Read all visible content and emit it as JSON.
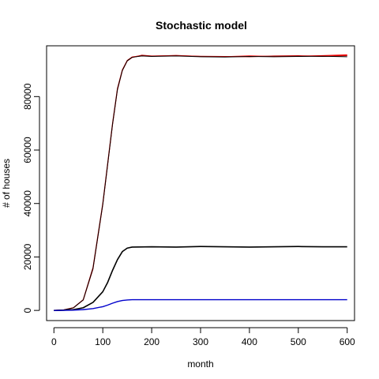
{
  "chart_data": {
    "type": "line",
    "title": "Stochastic model",
    "xlabel": "month",
    "ylabel": "# of houses",
    "xlim": [
      -15,
      615
    ],
    "ylim": [
      -3800,
      99000
    ],
    "x_ticks": [
      0,
      100,
      200,
      300,
      400,
      500,
      600
    ],
    "y_ticks": [
      0,
      20000,
      40000,
      60000,
      80000
    ],
    "grid": false,
    "legend": "none",
    "series": [
      {
        "color": "#ff0000",
        "width": 1.2,
        "values": [
          [
            0,
            0
          ],
          [
            20,
            200
          ],
          [
            40,
            1000
          ],
          [
            60,
            4000
          ],
          [
            80,
            16000
          ],
          [
            100,
            40000
          ],
          [
            110,
            55000
          ],
          [
            120,
            70000
          ],
          [
            130,
            83000
          ],
          [
            140,
            90000
          ],
          [
            150,
            93500
          ],
          [
            160,
            94800
          ],
          [
            180,
            95300
          ],
          [
            200,
            95100
          ],
          [
            250,
            95400
          ],
          [
            300,
            95000
          ],
          [
            350,
            94900
          ],
          [
            400,
            95200
          ],
          [
            450,
            95000
          ],
          [
            500,
            95100
          ],
          [
            550,
            95300
          ],
          [
            600,
            95600
          ]
        ]
      },
      {
        "color": "#c00000",
        "width": 1.0,
        "values": [
          [
            0,
            0
          ],
          [
            20,
            180
          ],
          [
            40,
            950
          ],
          [
            60,
            3900
          ],
          [
            80,
            15500
          ],
          [
            100,
            39500
          ],
          [
            110,
            54500
          ],
          [
            120,
            69500
          ],
          [
            130,
            82500
          ],
          [
            140,
            89700
          ],
          [
            150,
            93300
          ],
          [
            160,
            94600
          ],
          [
            180,
            95500
          ],
          [
            200,
            95200
          ],
          [
            250,
            95300
          ],
          [
            300,
            95100
          ],
          [
            350,
            95000
          ],
          [
            400,
            94900
          ],
          [
            450,
            95200
          ],
          [
            500,
            95300
          ],
          [
            550,
            95000
          ],
          [
            600,
            95300
          ]
        ]
      },
      {
        "color": "#000000",
        "width": 1.0,
        "values": [
          [
            0,
            0
          ],
          [
            20,
            190
          ],
          [
            40,
            980
          ],
          [
            60,
            3950
          ],
          [
            80,
            15800
          ],
          [
            100,
            39800
          ],
          [
            110,
            54800
          ],
          [
            120,
            69800
          ],
          [
            130,
            82800
          ],
          [
            140,
            89800
          ],
          [
            150,
            93400
          ],
          [
            160,
            94700
          ],
          [
            180,
            95200
          ],
          [
            200,
            95000
          ],
          [
            250,
            95200
          ],
          [
            300,
            94900
          ],
          [
            350,
            94800
          ],
          [
            400,
            95000
          ],
          [
            450,
            94900
          ],
          [
            500,
            95000
          ],
          [
            550,
            95100
          ],
          [
            600,
            94900
          ]
        ]
      },
      {
        "color": "#000000",
        "width": 1.6,
        "values": [
          [
            0,
            0
          ],
          [
            20,
            100
          ],
          [
            40,
            300
          ],
          [
            60,
            1000
          ],
          [
            80,
            3000
          ],
          [
            100,
            7000
          ],
          [
            110,
            10500
          ],
          [
            120,
            15000
          ],
          [
            130,
            19000
          ],
          [
            140,
            22000
          ],
          [
            150,
            23300
          ],
          [
            160,
            23700
          ],
          [
            200,
            23800
          ],
          [
            250,
            23700
          ],
          [
            300,
            23900
          ],
          [
            350,
            23800
          ],
          [
            400,
            23700
          ],
          [
            450,
            23800
          ],
          [
            500,
            23900
          ],
          [
            550,
            23800
          ],
          [
            600,
            23800
          ]
        ]
      },
      {
        "color": "#0000cc",
        "width": 1.4,
        "values": [
          [
            0,
            0
          ],
          [
            20,
            30
          ],
          [
            40,
            100
          ],
          [
            60,
            300
          ],
          [
            80,
            700
          ],
          [
            100,
            1400
          ],
          [
            110,
            2000
          ],
          [
            120,
            2700
          ],
          [
            130,
            3300
          ],
          [
            140,
            3700
          ],
          [
            150,
            3900
          ],
          [
            160,
            4000
          ],
          [
            200,
            4000
          ],
          [
            300,
            4000
          ],
          [
            400,
            4000
          ],
          [
            500,
            4000
          ],
          [
            600,
            4000
          ]
        ]
      }
    ]
  }
}
